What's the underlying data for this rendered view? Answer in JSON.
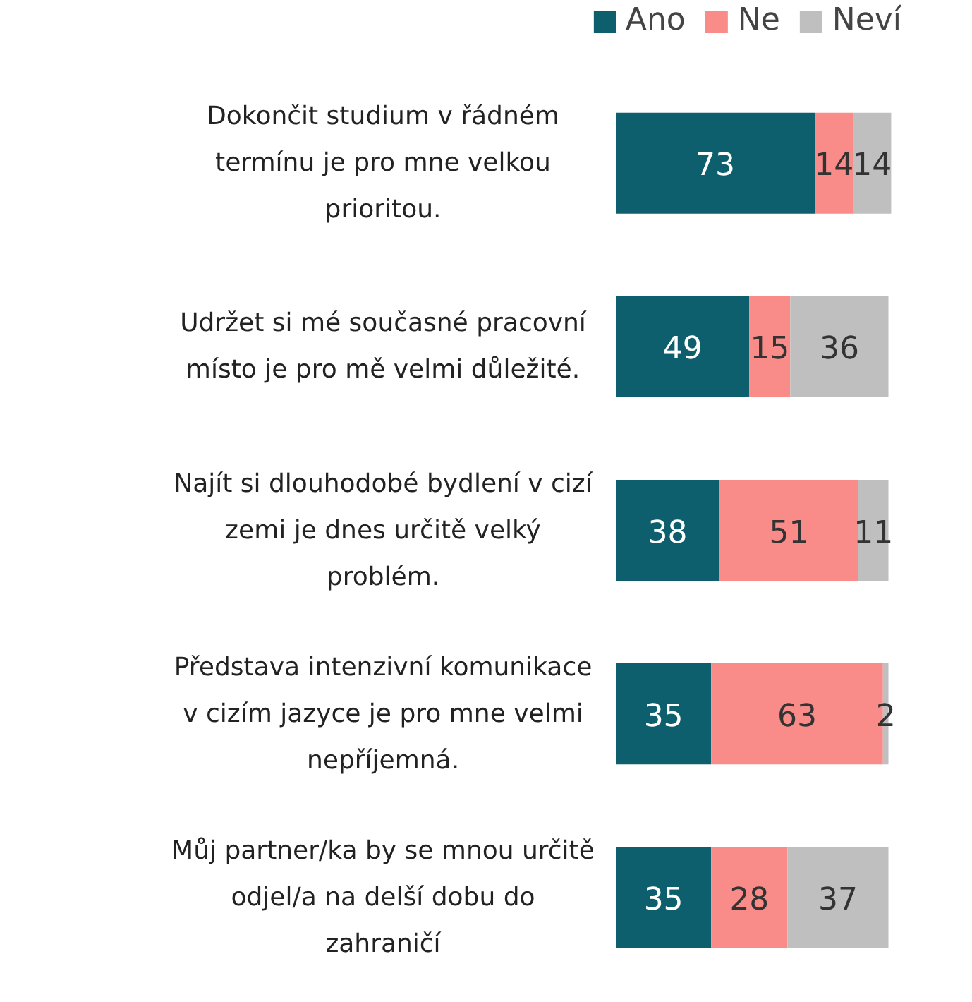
{
  "chart_data": {
    "type": "bar",
    "orientation": "horizontal",
    "stacked": true,
    "data_labels": true,
    "legend": "top right",
    "grid": false,
    "tick_labels": "y",
    "categories": [
      "Dokončit studium v řádném\ntermínu je pro mne velkou\nprioritou.",
      "Udržet si mé současné pracovní\nmísto je pro mě velmi důležité.",
      "Najít si dlouhodobé bydlení v cizí\nzemi je dnes určitě velký\nproblém.",
      "Představa intenzivní komunikace\nv cizím jazyce je pro mne velmi\nnepříjemná.",
      "Můj partner/ka by se mnou určitě\nodjel/a na delší dobu do\nzahraničí"
    ],
    "series": [
      {
        "name": "Ano",
        "color": "#0e5f6e",
        "values": [
          73,
          49,
          38,
          35,
          35
        ]
      },
      {
        "name": "Ne",
        "color": "#f98b88",
        "values": [
          14,
          15,
          51,
          63,
          28
        ]
      },
      {
        "name": "Neví",
        "color": "#bfbfbf",
        "values": [
          14,
          36,
          11,
          2,
          37
        ]
      }
    ]
  }
}
